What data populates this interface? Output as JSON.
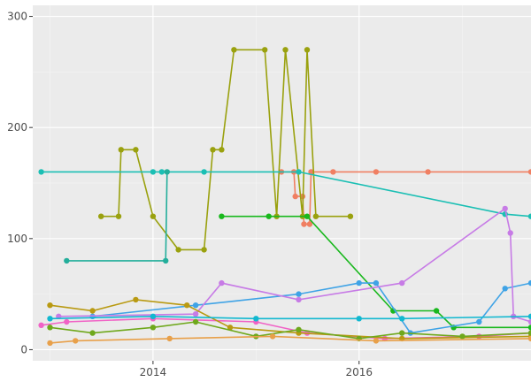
{
  "chart_data": {
    "type": "line",
    "title": "",
    "xlabel": "",
    "ylabel": "",
    "x_axis": {
      "type": "date",
      "min": "2012-11-01",
      "max": "2017-09-01",
      "ticks": [
        "2014",
        "2016"
      ],
      "tick_dates": [
        "2014-01-01",
        "2016-01-01"
      ]
    },
    "y_axis": {
      "min": -10,
      "max": 310,
      "ticks": [
        0,
        100,
        200,
        300
      ]
    },
    "grid": true,
    "legend": "none",
    "series": [
      {
        "color": "#f07f62",
        "points": [
          [
            "2015-04-01",
            160
          ],
          [
            "2015-05-15",
            160
          ],
          [
            "2015-05-20",
            138
          ],
          [
            "2015-06-15",
            138
          ],
          [
            "2015-06-20",
            113
          ],
          [
            "2015-07-10",
            113
          ],
          [
            "2015-07-15",
            160
          ],
          [
            "2015-10-01",
            160
          ],
          [
            "2016-03-01",
            160
          ],
          [
            "2016-09-01",
            160
          ],
          [
            "2017-09-01",
            160
          ]
        ]
      },
      {
        "color": "#9aa10e",
        "points": [
          [
            "2013-07-01",
            120
          ],
          [
            "2013-09-01",
            120
          ],
          [
            "2013-09-10",
            180
          ],
          [
            "2013-11-01",
            180
          ],
          [
            "2014-01-01",
            120
          ],
          [
            "2014-04-01",
            90
          ],
          [
            "2014-07-01",
            90
          ],
          [
            "2014-08-01",
            180
          ],
          [
            "2014-09-01",
            180
          ],
          [
            "2014-10-15",
            270
          ],
          [
            "2015-02-01",
            270
          ],
          [
            "2015-03-15",
            120
          ],
          [
            "2015-04-15",
            270
          ],
          [
            "2015-06-15",
            120
          ],
          [
            "2015-07-01",
            270
          ],
          [
            "2015-08-01",
            120
          ],
          [
            "2015-12-01",
            120
          ]
        ]
      },
      {
        "color": "#1bbfb4",
        "points": [
          [
            "2012-12-01",
            160
          ],
          [
            "2014-01-01",
            160
          ],
          [
            "2014-02-01",
            160
          ],
          [
            "2014-07-01",
            160
          ],
          [
            "2015-06-01",
            160
          ],
          [
            "2017-06-01",
            122
          ],
          [
            "2017-09-01",
            120
          ]
        ]
      },
      {
        "color": "#23ae9b",
        "points": [
          [
            "2013-03-01",
            80
          ],
          [
            "2014-02-15",
            80
          ],
          [
            "2014-02-20",
            160
          ]
        ]
      },
      {
        "color": "#19b81d",
        "points": [
          [
            "2014-09-01",
            120
          ],
          [
            "2015-02-15",
            120
          ],
          [
            "2015-07-01",
            120
          ],
          [
            "2016-05-01",
            35
          ],
          [
            "2016-10-01",
            35
          ],
          [
            "2016-12-01",
            20
          ],
          [
            "2017-09-01",
            20
          ]
        ]
      },
      {
        "color": "#3fa3e6",
        "points": [
          [
            "2013-06-01",
            30
          ],
          [
            "2014-06-01",
            40
          ],
          [
            "2015-06-01",
            50
          ],
          [
            "2016-01-01",
            60
          ],
          [
            "2016-03-01",
            60
          ],
          [
            "2016-07-01",
            15
          ],
          [
            "2017-03-01",
            25
          ],
          [
            "2017-06-01",
            55
          ],
          [
            "2017-09-01",
            60
          ]
        ]
      },
      {
        "color": "#c77be6",
        "points": [
          [
            "2013-02-01",
            30
          ],
          [
            "2014-06-01",
            32
          ],
          [
            "2014-09-01",
            60
          ],
          [
            "2015-06-01",
            45
          ],
          [
            "2016-06-01",
            60
          ],
          [
            "2017-06-01",
            127
          ],
          [
            "2017-06-20",
            105
          ],
          [
            "2017-07-01",
            30
          ],
          [
            "2017-09-01",
            25
          ]
        ]
      },
      {
        "color": "#f063c6",
        "points": [
          [
            "2012-12-01",
            22
          ],
          [
            "2013-03-01",
            25
          ],
          [
            "2014-01-01",
            28
          ],
          [
            "2015-01-01",
            25
          ],
          [
            "2015-07-01",
            15
          ],
          [
            "2016-04-01",
            10
          ],
          [
            "2017-03-01",
            12
          ],
          [
            "2017-09-01",
            15
          ]
        ]
      },
      {
        "color": "#b99a12",
        "points": [
          [
            "2013-01-01",
            40
          ],
          [
            "2013-06-01",
            35
          ],
          [
            "2013-11-01",
            45
          ],
          [
            "2014-05-01",
            40
          ],
          [
            "2014-10-01",
            20
          ],
          [
            "2015-06-01",
            15
          ],
          [
            "2016-06-01",
            10
          ],
          [
            "2017-09-01",
            12
          ]
        ]
      },
      {
        "color": "#6fa81c",
        "points": [
          [
            "2013-01-01",
            20
          ],
          [
            "2013-06-01",
            15
          ],
          [
            "2014-01-01",
            20
          ],
          [
            "2014-06-01",
            25
          ],
          [
            "2015-01-01",
            12
          ],
          [
            "2015-06-01",
            18
          ],
          [
            "2016-01-01",
            10
          ],
          [
            "2016-06-01",
            15
          ],
          [
            "2017-01-01",
            12
          ],
          [
            "2017-09-01",
            15
          ]
        ]
      },
      {
        "color": "#12b8d0",
        "points": [
          [
            "2013-01-01",
            28
          ],
          [
            "2014-01-01",
            30
          ],
          [
            "2015-01-01",
            28
          ],
          [
            "2016-01-01",
            28
          ],
          [
            "2016-06-01",
            28
          ],
          [
            "2017-09-01",
            30
          ]
        ]
      },
      {
        "color": "#e8a04a",
        "points": [
          [
            "2013-01-01",
            6
          ],
          [
            "2013-04-01",
            8
          ],
          [
            "2014-03-01",
            10
          ],
          [
            "2015-03-01",
            12
          ],
          [
            "2016-03-01",
            8
          ],
          [
            "2017-09-01",
            10
          ]
        ]
      }
    ]
  }
}
